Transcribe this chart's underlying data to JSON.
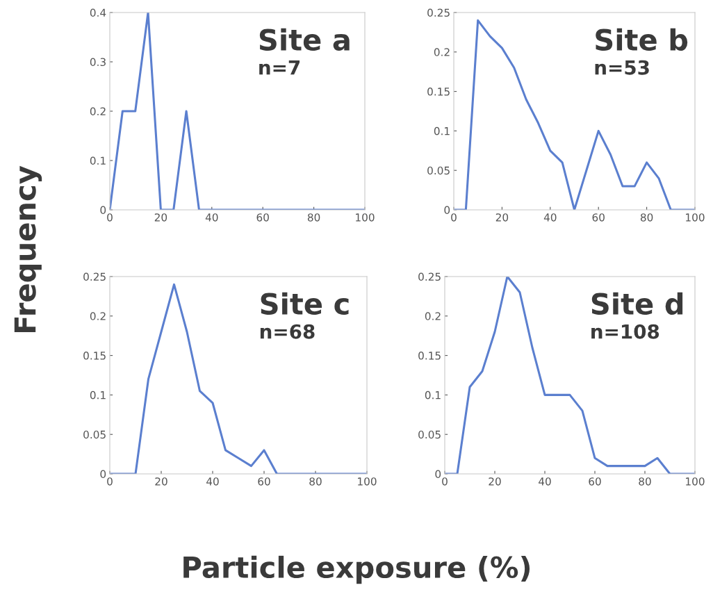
{
  "chart_data": [
    {
      "type": "line",
      "xlabel": "Particle exposure (%)",
      "ylabel": "Frequency",
      "annotations": [
        "Site a",
        "n=7"
      ],
      "x": [
        0,
        5,
        10,
        15,
        20,
        25,
        30,
        35,
        100
      ],
      "series": [
        {
          "color": "#5b7fcf",
          "values": [
            0,
            0.2,
            0.2,
            0.4,
            0,
            0,
            0.2,
            0,
            0
          ]
        }
      ],
      "xlim": [
        0,
        100
      ],
      "xticks": [
        0,
        20,
        40,
        60,
        80,
        100
      ],
      "ylim": [
        0,
        0.4
      ],
      "yticks": [
        0,
        0.1,
        0.2,
        0.3,
        0.4
      ],
      "grid": false,
      "legend": false
    },
    {
      "type": "line",
      "annotations": [
        "Site b",
        "n=53"
      ],
      "x": [
        0,
        5,
        10,
        15,
        20,
        25,
        30,
        35,
        40,
        45,
        50,
        55,
        60,
        65,
        70,
        75,
        80,
        85,
        90,
        100
      ],
      "series": [
        {
          "color": "#5b7fcf",
          "values": [
            0,
            0,
            0.24,
            0.22,
            0.205,
            0.18,
            0.14,
            0.11,
            0.075,
            0.06,
            0,
            0.05,
            0.1,
            0.07,
            0.03,
            0.03,
            0.06,
            0.04,
            0,
            0
          ]
        }
      ],
      "xlim": [
        0,
        100
      ],
      "xticks": [
        0,
        20,
        40,
        60,
        80,
        100
      ],
      "ylim": [
        0,
        0.25
      ],
      "yticks": [
        0,
        0.05,
        0.1,
        0.15,
        0.2,
        0.25
      ],
      "grid": false,
      "legend": false
    },
    {
      "type": "line",
      "annotations": [
        "Site c",
        "n=68"
      ],
      "x": [
        0,
        10,
        15,
        20,
        25,
        30,
        35,
        40,
        45,
        50,
        55,
        60,
        65,
        100
      ],
      "series": [
        {
          "color": "#5b7fcf",
          "values": [
            0,
            0,
            0.12,
            0.18,
            0.24,
            0.18,
            0.105,
            0.09,
            0.03,
            0.02,
            0.01,
            0.03,
            0,
            0
          ]
        }
      ],
      "xlim": [
        0,
        100
      ],
      "xticks": [
        0,
        20,
        40,
        60,
        80,
        100
      ],
      "ylim": [
        0,
        0.25
      ],
      "yticks": [
        0,
        0.05,
        0.1,
        0.15,
        0.2,
        0.25
      ],
      "grid": false,
      "legend": false
    },
    {
      "type": "line",
      "annotations": [
        "Site d",
        "n=108"
      ],
      "x": [
        0,
        5,
        10,
        15,
        20,
        25,
        30,
        35,
        40,
        45,
        50,
        55,
        60,
        65,
        70,
        75,
        80,
        85,
        90,
        100
      ],
      "series": [
        {
          "color": "#5b7fcf",
          "values": [
            0,
            0,
            0.11,
            0.13,
            0.18,
            0.25,
            0.23,
            0.16,
            0.1,
            0.1,
            0.1,
            0.08,
            0.02,
            0.01,
            0.01,
            0.01,
            0.01,
            0.02,
            0,
            0
          ]
        }
      ],
      "xlim": [
        0,
        100
      ],
      "xticks": [
        0,
        20,
        40,
        60,
        80,
        100
      ],
      "ylim": [
        0,
        0.25
      ],
      "yticks": [
        0,
        0.05,
        0.1,
        0.15,
        0.2,
        0.25
      ],
      "grid": false,
      "legend": false
    }
  ]
}
